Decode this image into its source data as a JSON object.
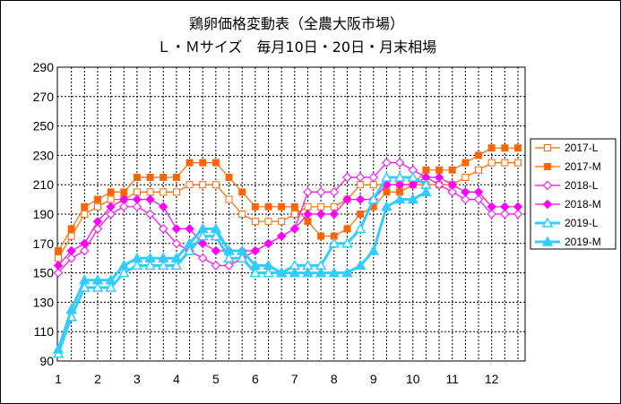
{
  "chart_data": {
    "type": "line",
    "title": "鶏卵価格変動表（全農大阪市場）",
    "subtitle": "Ｌ・Ｍサイズ　毎月10日・20日・月末相場",
    "x_ticks": [
      "1",
      "2",
      "3",
      "4",
      "5",
      "6",
      "7",
      "8",
      "9",
      "10",
      "11",
      "12"
    ],
    "ylim": [
      90,
      290
    ],
    "y_ticks": [
      90,
      110,
      130,
      150,
      170,
      190,
      210,
      230,
      250,
      270,
      290
    ],
    "grid": true,
    "legend_position": "right",
    "series": [
      {
        "name": "2017-L",
        "color": "#ff6600",
        "marker": "square",
        "filled": false,
        "line": "thin",
        "values": [
          160,
          175,
          190,
          195,
          200,
          200,
          205,
          205,
          205,
          205,
          210,
          210,
          210,
          200,
          190,
          185,
          185,
          185,
          190,
          195,
          195,
          195,
          200,
          210,
          210,
          210,
          210,
          210,
          210,
          210,
          210,
          215,
          220,
          225,
          225,
          225
        ]
      },
      {
        "name": "2017-M",
        "color": "#ff6600",
        "marker": "square",
        "filled": true,
        "line": "thin",
        "values": [
          165,
          180,
          195,
          200,
          205,
          205,
          215,
          215,
          215,
          215,
          225,
          225,
          225,
          215,
          205,
          195,
          195,
          195,
          195,
          185,
          175,
          175,
          180,
          190,
          195,
          205,
          205,
          210,
          220,
          220,
          220,
          225,
          230,
          235,
          235,
          235
        ]
      },
      {
        "name": "2018-L",
        "color": "#ff00ff",
        "marker": "diamond",
        "filled": false,
        "line": "thin",
        "values": [
          150,
          160,
          165,
          180,
          190,
          195,
          195,
          190,
          180,
          170,
          165,
          160,
          155,
          155,
          160,
          165,
          170,
          175,
          180,
          205,
          205,
          205,
          215,
          215,
          215,
          225,
          225,
          220,
          215,
          210,
          205,
          200,
          200,
          190,
          190,
          190
        ]
      },
      {
        "name": "2018-M",
        "color": "#ff00ff",
        "marker": "diamond",
        "filled": true,
        "line": "thin",
        "values": [
          155,
          165,
          170,
          185,
          195,
          200,
          200,
          200,
          195,
          180,
          180,
          170,
          165,
          165,
          165,
          165,
          170,
          175,
          180,
          190,
          190,
          190,
          200,
          200,
          200,
          210,
          210,
          210,
          215,
          215,
          210,
          205,
          205,
          195,
          195,
          195
        ]
      },
      {
        "name": "2019-L",
        "color": "#33ccff",
        "marker": "triangle",
        "filled": false,
        "line": "thick",
        "values": [
          95,
          120,
          140,
          140,
          140,
          150,
          155,
          155,
          155,
          155,
          165,
          175,
          175,
          160,
          160,
          150,
          150,
          150,
          155,
          155,
          155,
          170,
          170,
          180,
          200,
          215,
          215,
          215,
          210
        ]
      },
      {
        "name": "2019-M",
        "color": "#33ccff",
        "marker": "triangle",
        "filled": true,
        "line": "thick",
        "values": [
          98,
          125,
          145,
          145,
          145,
          155,
          160,
          160,
          160,
          160,
          170,
          180,
          180,
          165,
          165,
          155,
          155,
          150,
          150,
          150,
          150,
          150,
          150,
          155,
          165,
          195,
          200,
          200,
          205
        ]
      }
    ]
  }
}
